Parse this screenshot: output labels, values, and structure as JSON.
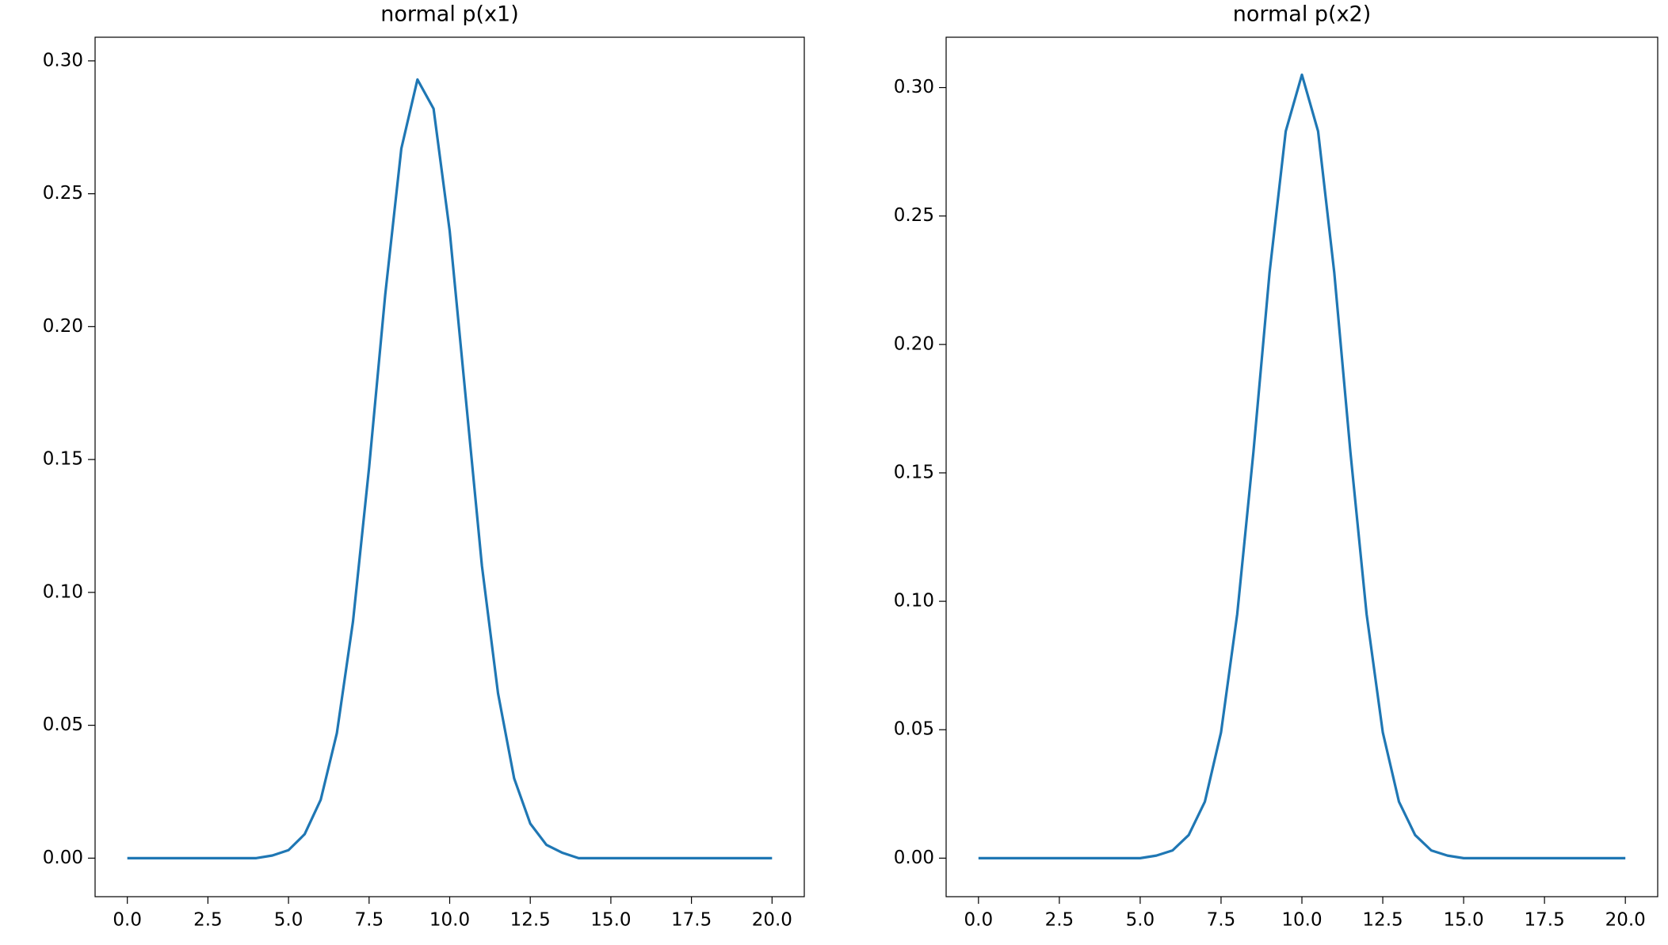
{
  "chart_data": [
    {
      "type": "line",
      "title": "normal p(x1)",
      "x": [
        0,
        0.5,
        1,
        1.5,
        2,
        2.5,
        3,
        3.5,
        4,
        4.5,
        5,
        5.5,
        6,
        6.5,
        7,
        7.5,
        8,
        8.5,
        9,
        9.5,
        10,
        10.5,
        11,
        11.5,
        12,
        12.5,
        13,
        13.5,
        14,
        14.5,
        15,
        15.5,
        16,
        16.5,
        17,
        17.5,
        18,
        18.5,
        19,
        19.5,
        20
      ],
      "series": [
        {
          "color": "#1f77b4",
          "values": [
            0,
            0,
            0,
            0,
            0,
            0,
            0,
            0,
            0,
            0.001,
            0.003,
            0.009,
            0.022,
            0.047,
            0.089,
            0.147,
            0.212,
            0.267,
            0.293,
            0.282,
            0.236,
            0.173,
            0.11,
            0.062,
            0.03,
            0.013,
            0.005,
            0.002,
            0,
            0,
            0,
            0,
            0,
            0,
            0,
            0,
            0,
            0,
            0,
            0,
            0
          ]
        }
      ],
      "xlim": [
        -1,
        21
      ],
      "xticks": [
        {
          "value": 0,
          "label": "0.0"
        },
        {
          "value": 2.5,
          "label": "2.5"
        },
        {
          "value": 5,
          "label": "5.0"
        },
        {
          "value": 7.5,
          "label": "7.5"
        },
        {
          "value": 10,
          "label": "10.0"
        },
        {
          "value": 12.5,
          "label": "12.5"
        },
        {
          "value": 15,
          "label": "15.0"
        },
        {
          "value": 17.5,
          "label": "17.5"
        },
        {
          "value": 20,
          "label": "20.0"
        }
      ],
      "ylim": [
        -0.0145,
        0.3089
      ],
      "yticks": [
        {
          "value": 0,
          "label": "0.00"
        },
        {
          "value": 0.05,
          "label": "0.05"
        },
        {
          "value": 0.1,
          "label": "0.10"
        },
        {
          "value": 0.15,
          "label": "0.15"
        },
        {
          "value": 0.2,
          "label": "0.20"
        },
        {
          "value": 0.25,
          "label": "0.25"
        },
        {
          "value": 0.3,
          "label": "0.30"
        }
      ]
    },
    {
      "type": "line",
      "title": "normal p(x2)",
      "x": [
        0,
        0.5,
        1,
        1.5,
        2,
        2.5,
        3,
        3.5,
        4,
        4.5,
        5,
        5.5,
        6,
        6.5,
        7,
        7.5,
        8,
        8.5,
        9,
        9.5,
        10,
        10.5,
        11,
        11.5,
        12,
        12.5,
        13,
        13.5,
        14,
        14.5,
        15,
        15.5,
        16,
        16.5,
        17,
        17.5,
        18,
        18.5,
        19,
        19.5,
        20
      ],
      "series": [
        {
          "color": "#1f77b4",
          "values": [
            0,
            0,
            0,
            0,
            0,
            0,
            0,
            0,
            0,
            0,
            0,
            0.001,
            0.003,
            0.009,
            0.022,
            0.049,
            0.095,
            0.158,
            0.228,
            0.283,
            0.305,
            0.283,
            0.228,
            0.158,
            0.095,
            0.049,
            0.022,
            0.009,
            0.003,
            0.001,
            0,
            0,
            0,
            0,
            0,
            0,
            0,
            0,
            0,
            0,
            0
          ]
        }
      ],
      "xlim": [
        -1,
        21
      ],
      "xticks": [
        {
          "value": 0,
          "label": "0.0"
        },
        {
          "value": 2.5,
          "label": "2.5"
        },
        {
          "value": 5,
          "label": "5.0"
        },
        {
          "value": 7.5,
          "label": "7.5"
        },
        {
          "value": 10,
          "label": "10.0"
        },
        {
          "value": 12.5,
          "label": "12.5"
        },
        {
          "value": 15,
          "label": "15.0"
        },
        {
          "value": 17.5,
          "label": "17.5"
        },
        {
          "value": 20,
          "label": "20.0"
        }
      ],
      "ylim": [
        -0.015,
        0.3196
      ],
      "yticks": [
        {
          "value": 0,
          "label": "0.00"
        },
        {
          "value": 0.05,
          "label": "0.05"
        },
        {
          "value": 0.1,
          "label": "0.10"
        },
        {
          "value": 0.15,
          "label": "0.15"
        },
        {
          "value": 0.2,
          "label": "0.20"
        },
        {
          "value": 0.25,
          "label": "0.25"
        },
        {
          "value": 0.3,
          "label": "0.30"
        }
      ]
    }
  ]
}
